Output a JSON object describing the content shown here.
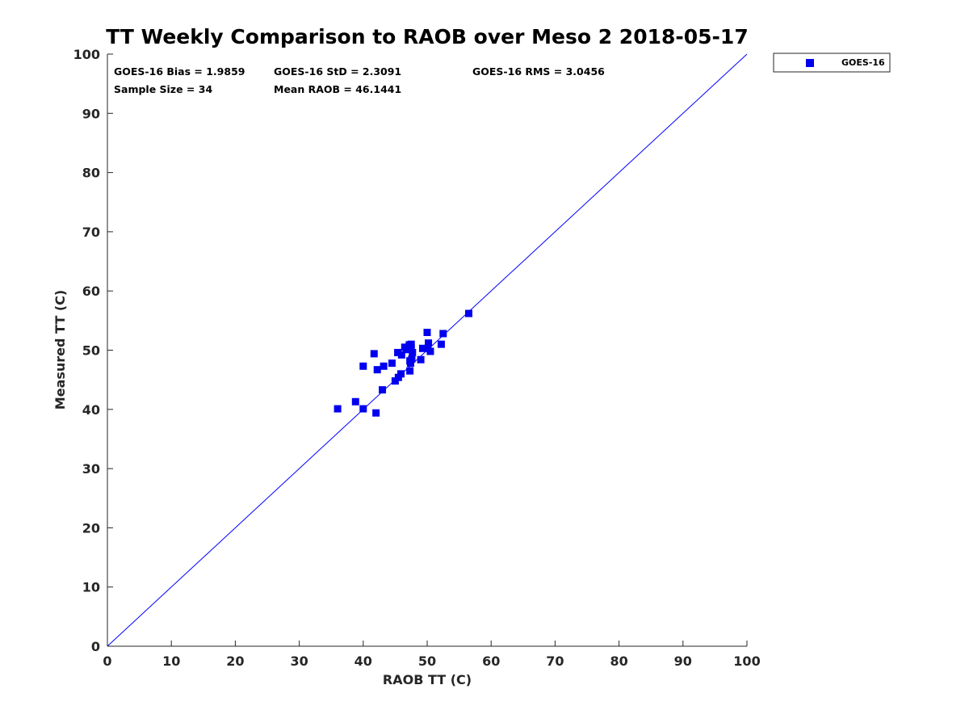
{
  "chart_data": {
    "type": "scatter",
    "title": "TT Weekly Comparison to RAOB over Meso 2 2018-05-17",
    "xlabel": "RAOB TT (C)",
    "ylabel": "Measured TT (C)",
    "xlim": [
      0,
      100
    ],
    "ylim": [
      0,
      100
    ],
    "xticks": [
      "0",
      "10",
      "20",
      "30",
      "40",
      "50",
      "60",
      "70",
      "80",
      "90",
      "100"
    ],
    "yticks": [
      "0",
      "10",
      "20",
      "30",
      "40",
      "50",
      "60",
      "70",
      "80",
      "90",
      "100"
    ],
    "grid": false,
    "reference_line": {
      "type": "one-to-one",
      "color": "#0000ff"
    },
    "series": [
      {
        "name": "GOES-16",
        "color": "#0000ee",
        "marker": "square",
        "x": [
          36.0,
          38.8,
          40.0,
          40.0,
          42.0,
          41.7,
          42.2,
          43.0,
          43.2,
          44.5,
          45.0,
          45.5,
          45.4,
          45.9,
          46.0,
          46.5,
          46.8,
          47.3,
          47.3,
          47.2,
          47.4,
          47.5,
          47.6,
          47.7,
          49.0,
          49.3,
          50.0,
          50.2,
          50.1,
          50.5,
          52.2,
          52.5,
          56.5,
          47.5
        ],
        "y": [
          40.1,
          41.3,
          40.1,
          47.3,
          39.4,
          49.4,
          46.7,
          43.3,
          47.3,
          47.8,
          44.8,
          45.4,
          49.6,
          46.0,
          49.2,
          50.5,
          50.1,
          46.5,
          48.2,
          50.9,
          47.8,
          51.0,
          48.5,
          49.6,
          48.4,
          50.3,
          53.0,
          51.2,
          50.3,
          49.8,
          51.0,
          52.8,
          56.2,
          50.3
        ]
      }
    ],
    "stats": {
      "bias": "GOES-16 Bias = 1.9859",
      "std": "GOES-16 StD = 2.3091",
      "rms": "GOES-16 RMS = 3.0456",
      "sample_size": "Sample Size = 34",
      "mean_raob": "Mean RAOB = 46.1441"
    },
    "legend": {
      "position": "top-right-outside",
      "entries": [
        "GOES-16"
      ]
    }
  }
}
